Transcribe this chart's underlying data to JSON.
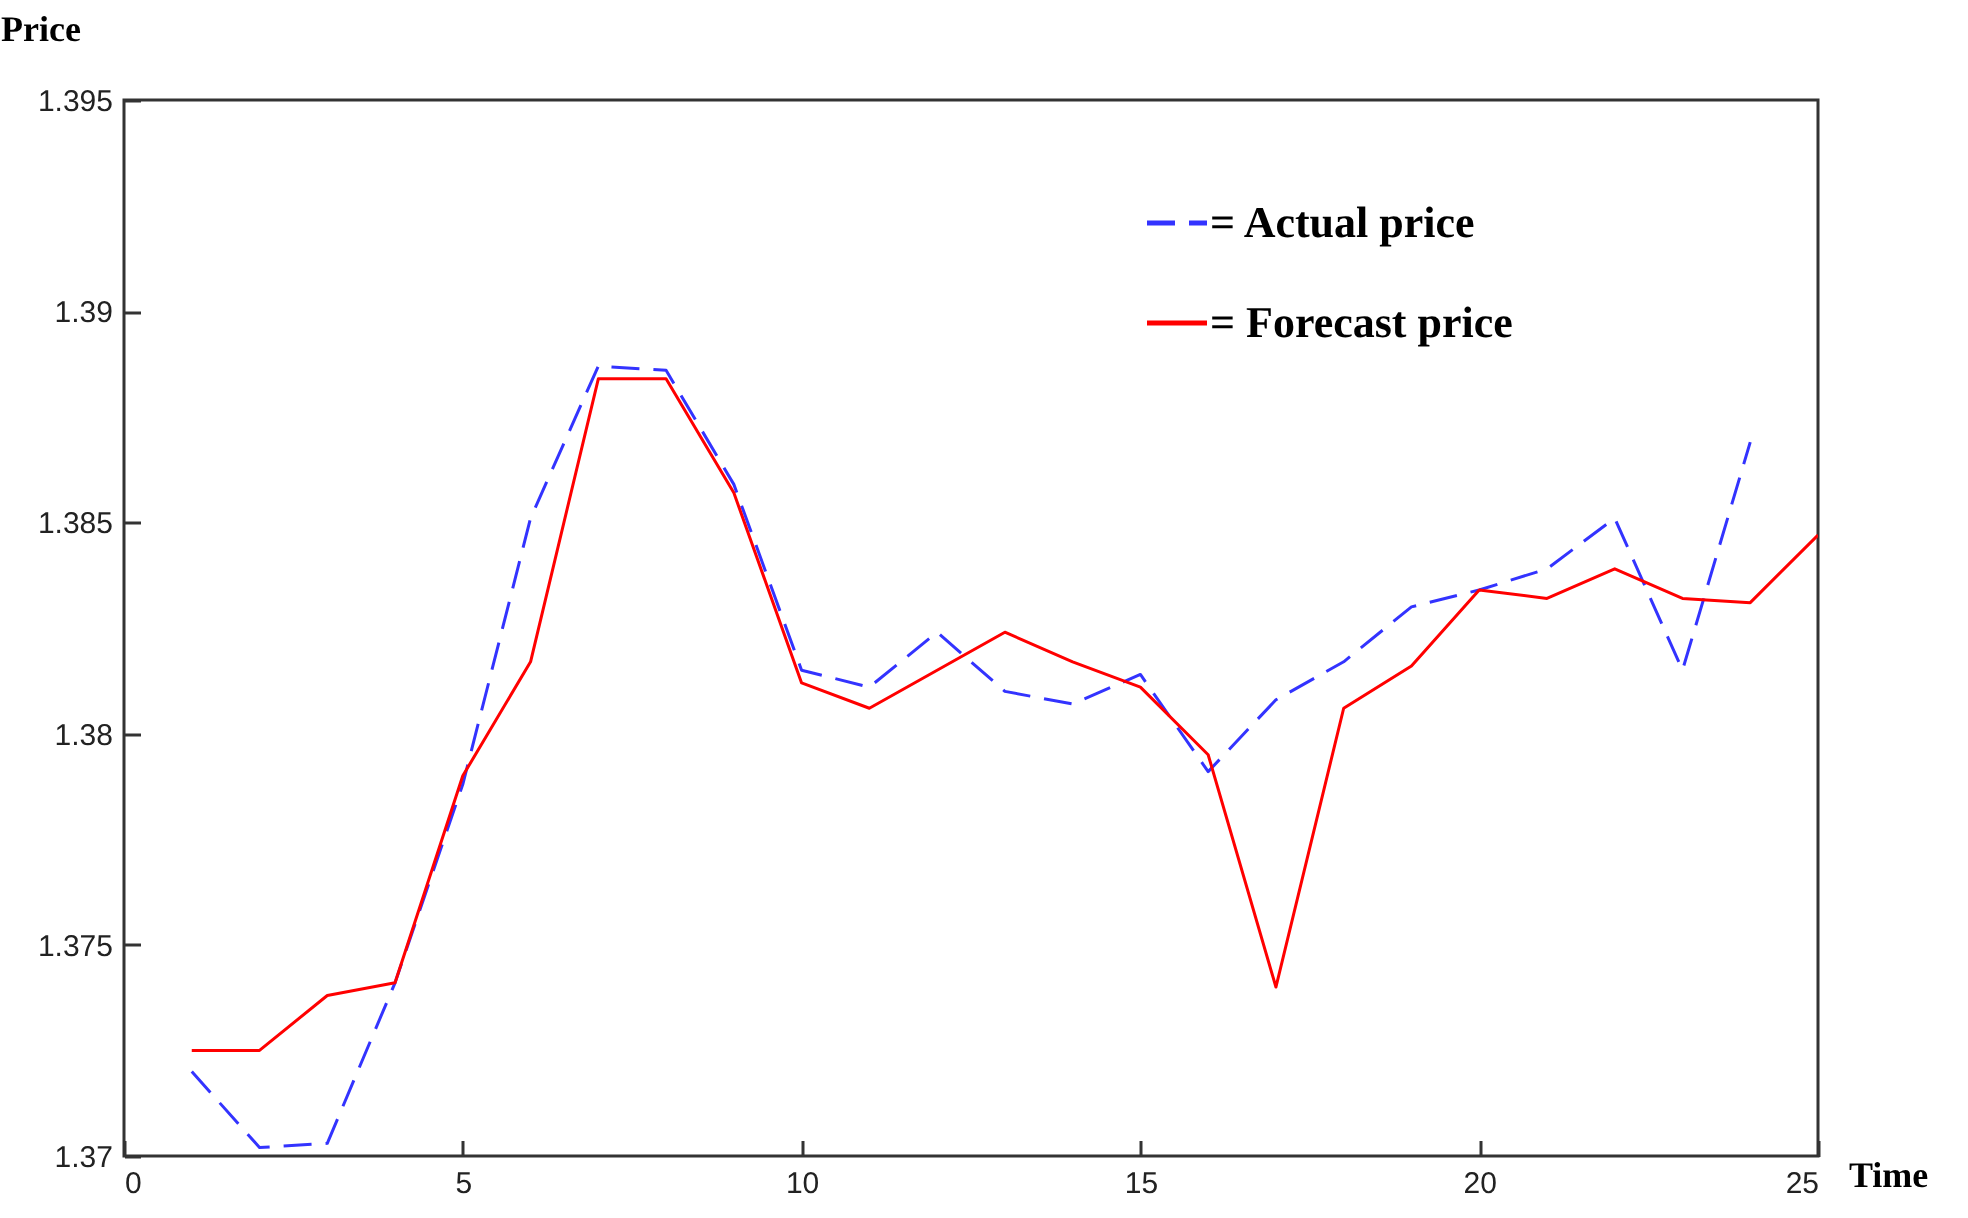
{
  "chart_data": {
    "type": "line",
    "xlabel": "Time",
    "ylabel": "Price",
    "xlim": [
      0,
      25
    ],
    "xticks": [
      0,
      5,
      10,
      15,
      20,
      25
    ],
    "ylim": [
      1.37,
      1.395
    ],
    "yticks": [
      1.37,
      1.375,
      1.38,
      1.385,
      1.39,
      1.395
    ],
    "grid": false,
    "legend": "top right",
    "marker": "none",
    "series": [
      {
        "name": "= Actual price",
        "color": "#3333ff",
        "line_style": "dashed",
        "x": [
          1,
          2,
          3,
          4,
          5,
          6,
          7,
          8,
          9,
          10,
          11,
          12,
          13,
          14,
          15,
          16,
          17,
          18,
          19,
          20,
          21,
          22,
          23,
          24
        ],
        "values": [
          1.372,
          1.3702,
          1.3703,
          1.3741,
          1.3788,
          1.3851,
          1.3887,
          1.3886,
          1.3859,
          1.3815,
          1.3811,
          1.3824,
          1.381,
          1.3807,
          1.3814,
          1.3791,
          1.3808,
          1.3817,
          1.383,
          1.3834,
          1.3839,
          1.3851,
          1.3815,
          1.3869
        ]
      },
      {
        "name": "= Forecast price",
        "color": "#ff0000",
        "line_style": "solid",
        "x": [
          1,
          2,
          3,
          4,
          5,
          6,
          7,
          8,
          9,
          10,
          11,
          12,
          13,
          14,
          15,
          16,
          17,
          18,
          19,
          20,
          21,
          22,
          23,
          24,
          25
        ],
        "values": [
          1.3725,
          1.3725,
          1.3738,
          1.3741,
          1.379,
          1.3817,
          1.3884,
          1.3884,
          1.3857,
          1.3812,
          1.3806,
          1.3815,
          1.3824,
          1.3817,
          1.3811,
          1.3795,
          1.374,
          1.3806,
          1.3816,
          1.3834,
          1.3832,
          1.3839,
          1.3832,
          1.3831,
          1.3847
        ]
      }
    ]
  }
}
